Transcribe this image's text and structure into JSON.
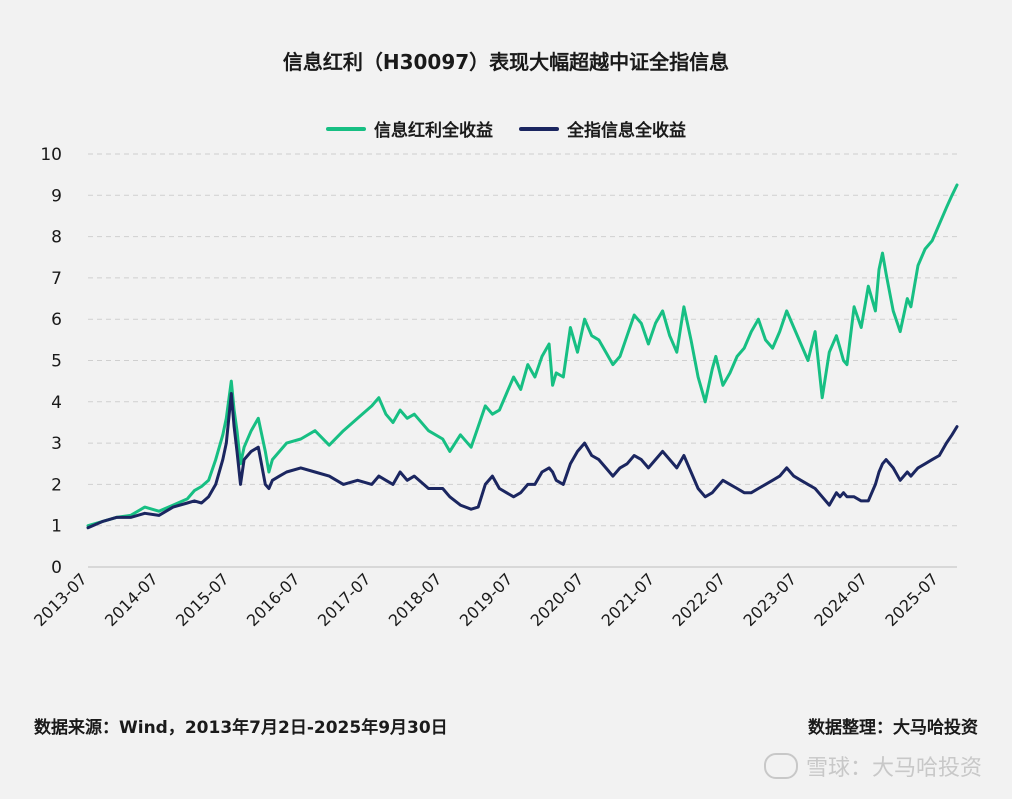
{
  "colors": {
    "series1": "#17bf83",
    "series2": "#1b2660",
    "grid": "#cfcfcf",
    "axis": "#333333",
    "background": "#f2f2f2"
  },
  "chart_data": {
    "type": "line",
    "title": "信息红利（H30097）表现大幅超越中证全指信息",
    "ylim": [
      0,
      10
    ],
    "yticks": [
      0,
      1,
      2,
      3,
      4,
      5,
      6,
      7,
      8,
      9,
      10
    ],
    "xlim": [
      2013.5,
      2025.75
    ],
    "xtick_labels": [
      "2013-07",
      "2014-07",
      "2015-07",
      "2016-07",
      "2017-07",
      "2018-07",
      "2019-07",
      "2020-07",
      "2021-07",
      "2022-07",
      "2023-07",
      "2024-07",
      "2025-07"
    ],
    "grid": "horizontal dashed",
    "legend": "top-center",
    "series": [
      {
        "name": "信息红利全收益",
        "x": [
          2013.5,
          2013.7,
          2013.9,
          2014.1,
          2014.3,
          2014.5,
          2014.7,
          2014.9,
          2015.0,
          2015.1,
          2015.2,
          2015.3,
          2015.4,
          2015.45,
          2015.52,
          2015.56,
          2015.6,
          2015.65,
          2015.7,
          2015.8,
          2015.9,
          2016.0,
          2016.05,
          2016.1,
          2016.2,
          2016.3,
          2016.5,
          2016.7,
          2016.9,
          2017.1,
          2017.3,
          2017.5,
          2017.6,
          2017.7,
          2017.8,
          2017.9,
          2018.0,
          2018.1,
          2018.3,
          2018.5,
          2018.6,
          2018.75,
          2018.9,
          2019.0,
          2019.1,
          2019.2,
          2019.3,
          2019.4,
          2019.5,
          2019.6,
          2019.7,
          2019.8,
          2019.9,
          2020.0,
          2020.05,
          2020.1,
          2020.2,
          2020.3,
          2020.4,
          2020.5,
          2020.6,
          2020.7,
          2020.8,
          2020.9,
          2021.0,
          2021.1,
          2021.2,
          2021.3,
          2021.4,
          2021.5,
          2021.6,
          2021.7,
          2021.8,
          2021.9,
          2022.0,
          2022.1,
          2022.2,
          2022.3,
          2022.35,
          2022.45,
          2022.55,
          2022.65,
          2022.75,
          2022.85,
          2022.95,
          2023.05,
          2023.15,
          2023.25,
          2023.35,
          2023.45,
          2023.55,
          2023.65,
          2023.75,
          2023.85,
          2023.95,
          2024.05,
          2024.1,
          2024.15,
          2024.2,
          2024.3,
          2024.4,
          2024.5,
          2024.6,
          2024.65,
          2024.7,
          2024.75,
          2024.85,
          2024.95,
          2025.05,
          2025.1,
          2025.15,
          2025.2,
          2025.3,
          2025.4,
          2025.5,
          2025.6,
          2025.68,
          2025.75
        ],
        "y": [
          1.0,
          1.1,
          1.2,
          1.25,
          1.45,
          1.35,
          1.5,
          1.65,
          1.85,
          1.95,
          2.1,
          2.6,
          3.2,
          3.6,
          4.5,
          3.8,
          3.3,
          2.5,
          2.9,
          3.3,
          3.6,
          2.8,
          2.3,
          2.6,
          2.8,
          3.0,
          3.1,
          3.3,
          2.95,
          3.3,
          3.6,
          3.9,
          4.1,
          3.7,
          3.5,
          3.8,
          3.6,
          3.7,
          3.3,
          3.1,
          2.8,
          3.2,
          2.9,
          3.4,
          3.9,
          3.7,
          3.8,
          4.2,
          4.6,
          4.3,
          4.9,
          4.6,
          5.1,
          5.4,
          4.4,
          4.7,
          4.6,
          5.8,
          5.2,
          6.0,
          5.6,
          5.5,
          5.2,
          4.9,
          5.1,
          5.6,
          6.1,
          5.9,
          5.4,
          5.9,
          6.2,
          5.6,
          5.2,
          6.3,
          5.5,
          4.6,
          4.0,
          4.8,
          5.1,
          4.4,
          4.7,
          5.1,
          5.3,
          5.7,
          6.0,
          5.5,
          5.3,
          5.7,
          6.2,
          5.8,
          5.4,
          5.0,
          5.7,
          4.1,
          5.2,
          5.6,
          5.3,
          5.0,
          4.9,
          6.3,
          5.8,
          6.8,
          6.2,
          7.2,
          7.6,
          7.1,
          6.2,
          5.7,
          6.5,
          6.3,
          6.8,
          7.3,
          7.7,
          7.9,
          8.3,
          8.7,
          9.0,
          9.25
        ]
      },
      {
        "name": "全指信息全收益",
        "x": [
          2013.5,
          2013.7,
          2013.9,
          2014.1,
          2014.3,
          2014.5,
          2014.7,
          2014.9,
          2015.0,
          2015.1,
          2015.2,
          2015.3,
          2015.4,
          2015.45,
          2015.52,
          2015.56,
          2015.6,
          2015.65,
          2015.7,
          2015.8,
          2015.9,
          2016.0,
          2016.05,
          2016.1,
          2016.2,
          2016.3,
          2016.5,
          2016.7,
          2016.9,
          2017.1,
          2017.3,
          2017.5,
          2017.6,
          2017.7,
          2017.8,
          2017.9,
          2018.0,
          2018.1,
          2018.3,
          2018.5,
          2018.6,
          2018.75,
          2018.9,
          2019.0,
          2019.1,
          2019.2,
          2019.3,
          2019.4,
          2019.5,
          2019.6,
          2019.7,
          2019.8,
          2019.9,
          2020.0,
          2020.05,
          2020.1,
          2020.2,
          2020.3,
          2020.4,
          2020.5,
          2020.6,
          2020.7,
          2020.8,
          2020.9,
          2021.0,
          2021.1,
          2021.2,
          2021.3,
          2021.4,
          2021.5,
          2021.6,
          2021.7,
          2021.8,
          2021.9,
          2022.0,
          2022.1,
          2022.2,
          2022.3,
          2022.35,
          2022.45,
          2022.55,
          2022.65,
          2022.75,
          2022.85,
          2022.95,
          2023.05,
          2023.15,
          2023.25,
          2023.35,
          2023.45,
          2023.55,
          2023.65,
          2023.75,
          2023.85,
          2023.95,
          2024.05,
          2024.1,
          2024.15,
          2024.2,
          2024.3,
          2024.4,
          2024.5,
          2024.6,
          2024.65,
          2024.7,
          2024.75,
          2024.85,
          2024.95,
          2025.05,
          2025.1,
          2025.15,
          2025.2,
          2025.3,
          2025.4,
          2025.5,
          2025.6,
          2025.68,
          2025.75
        ],
        "y": [
          0.95,
          1.1,
          1.2,
          1.2,
          1.3,
          1.25,
          1.45,
          1.55,
          1.6,
          1.55,
          1.7,
          2.0,
          2.6,
          3.0,
          4.2,
          3.4,
          2.8,
          2.0,
          2.6,
          2.8,
          2.9,
          2.0,
          1.9,
          2.1,
          2.2,
          2.3,
          2.4,
          2.3,
          2.2,
          2.0,
          2.1,
          2.0,
          2.2,
          2.1,
          2.0,
          2.3,
          2.1,
          2.2,
          1.9,
          1.9,
          1.7,
          1.5,
          1.4,
          1.45,
          2.0,
          2.2,
          1.9,
          1.8,
          1.7,
          1.8,
          2.0,
          2.0,
          2.3,
          2.4,
          2.3,
          2.1,
          2.0,
          2.5,
          2.8,
          3.0,
          2.7,
          2.6,
          2.4,
          2.2,
          2.4,
          2.5,
          2.7,
          2.6,
          2.4,
          2.6,
          2.8,
          2.6,
          2.4,
          2.7,
          2.3,
          1.9,
          1.7,
          1.8,
          1.9,
          2.1,
          2.0,
          1.9,
          1.8,
          1.8,
          1.9,
          2.0,
          2.1,
          2.2,
          2.4,
          2.2,
          2.1,
          2.0,
          1.9,
          1.7,
          1.5,
          1.8,
          1.7,
          1.8,
          1.7,
          1.7,
          1.6,
          1.6,
          2.0,
          2.3,
          2.5,
          2.6,
          2.4,
          2.1,
          2.3,
          2.2,
          2.3,
          2.4,
          2.5,
          2.6,
          2.7,
          3.0,
          3.2,
          3.4
        ]
      }
    ]
  },
  "footer": {
    "source": "数据来源：Wind，2013年7月2日-2025年9月30日",
    "compiled_by": "数据整理：大马哈投资"
  },
  "watermark": {
    "text": "雪球：大马哈投资"
  }
}
